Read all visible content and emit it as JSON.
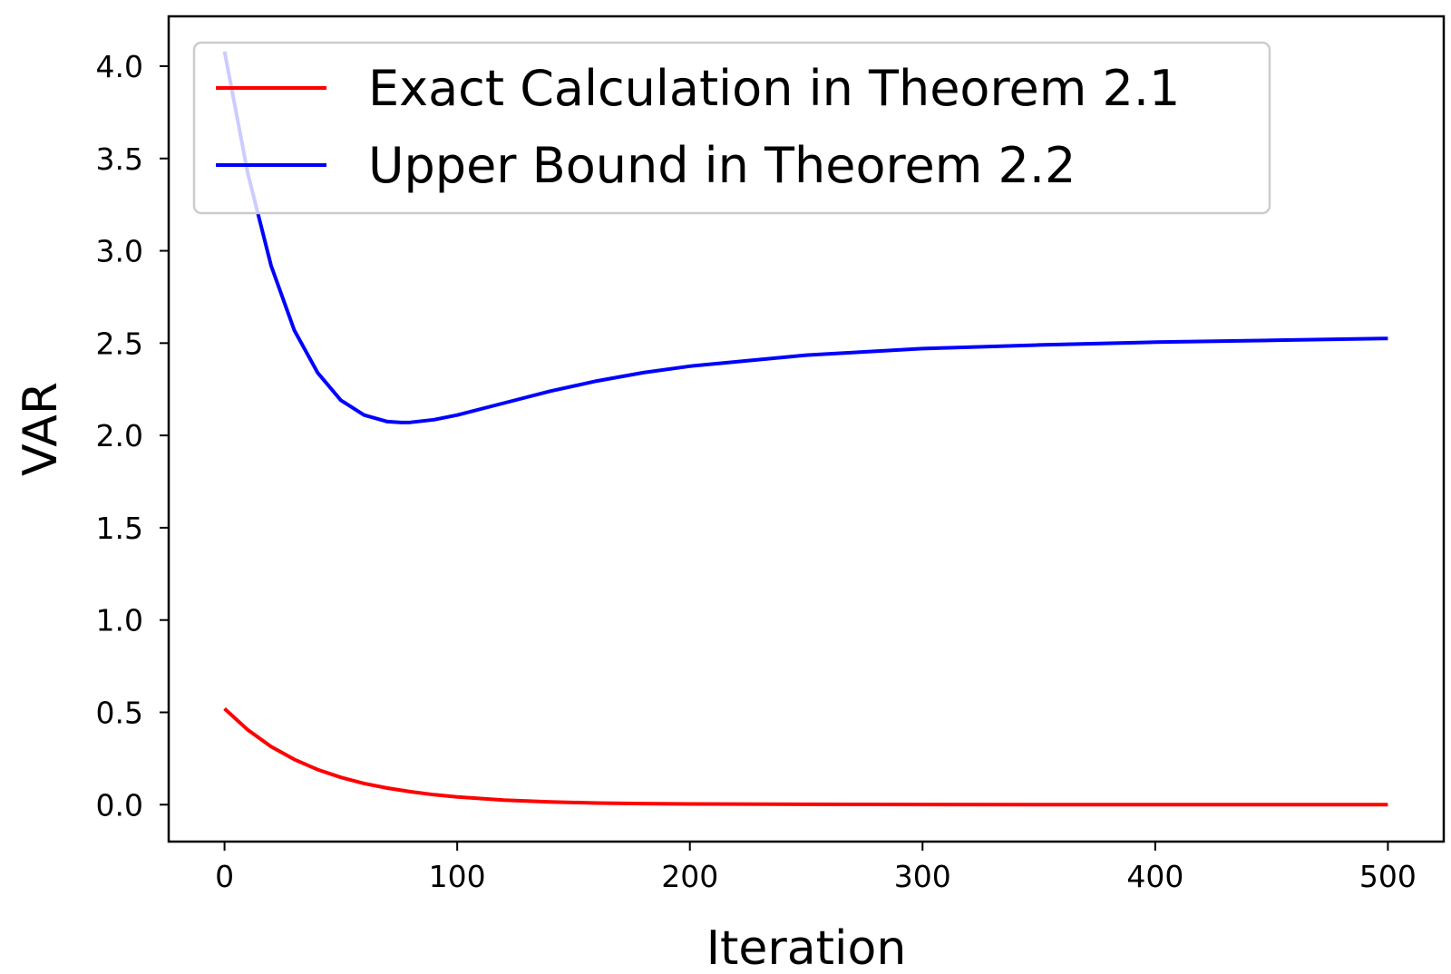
{
  "chart_data": {
    "type": "line",
    "xlabel": "Iteration",
    "ylabel": "VAR",
    "xlim": [
      -24,
      524
    ],
    "ylim": [
      -0.2,
      4.27
    ],
    "x_ticks": [
      0,
      100,
      200,
      300,
      400,
      500
    ],
    "y_ticks": [
      0.0,
      0.5,
      1.0,
      1.5,
      2.0,
      2.5,
      3.0,
      3.5,
      4.0
    ],
    "grid": false,
    "legend_position": "upper-left",
    "series": [
      {
        "name": "Exact Calculation in Theorem 2.1",
        "color": "#ff0000",
        "x": [
          0,
          10,
          20,
          30,
          40,
          50,
          60,
          70,
          80,
          90,
          100,
          120,
          140,
          160,
          180,
          200,
          250,
          300,
          350,
          400,
          450,
          500
        ],
        "y": [
          0.52,
          0.405,
          0.315,
          0.245,
          0.19,
          0.148,
          0.115,
          0.09,
          0.07,
          0.054,
          0.042,
          0.025,
          0.015,
          0.009,
          0.006,
          0.004,
          0.002,
          0.001,
          0.0005,
          0.0002,
          0.0001,
          0.0
        ]
      },
      {
        "name": "Upper Bound in Theorem 2.2",
        "color": "#0000ff",
        "x": [
          0,
          10,
          20,
          30,
          40,
          50,
          60,
          70,
          76,
          80,
          90,
          100,
          120,
          140,
          160,
          180,
          200,
          250,
          300,
          350,
          400,
          450,
          500
        ],
        "y": [
          4.08,
          3.42,
          2.92,
          2.57,
          2.34,
          2.19,
          2.11,
          2.075,
          2.07,
          2.071,
          2.085,
          2.11,
          2.175,
          2.24,
          2.295,
          2.34,
          2.375,
          2.435,
          2.47,
          2.49,
          2.505,
          2.515,
          2.525
        ]
      }
    ]
  }
}
